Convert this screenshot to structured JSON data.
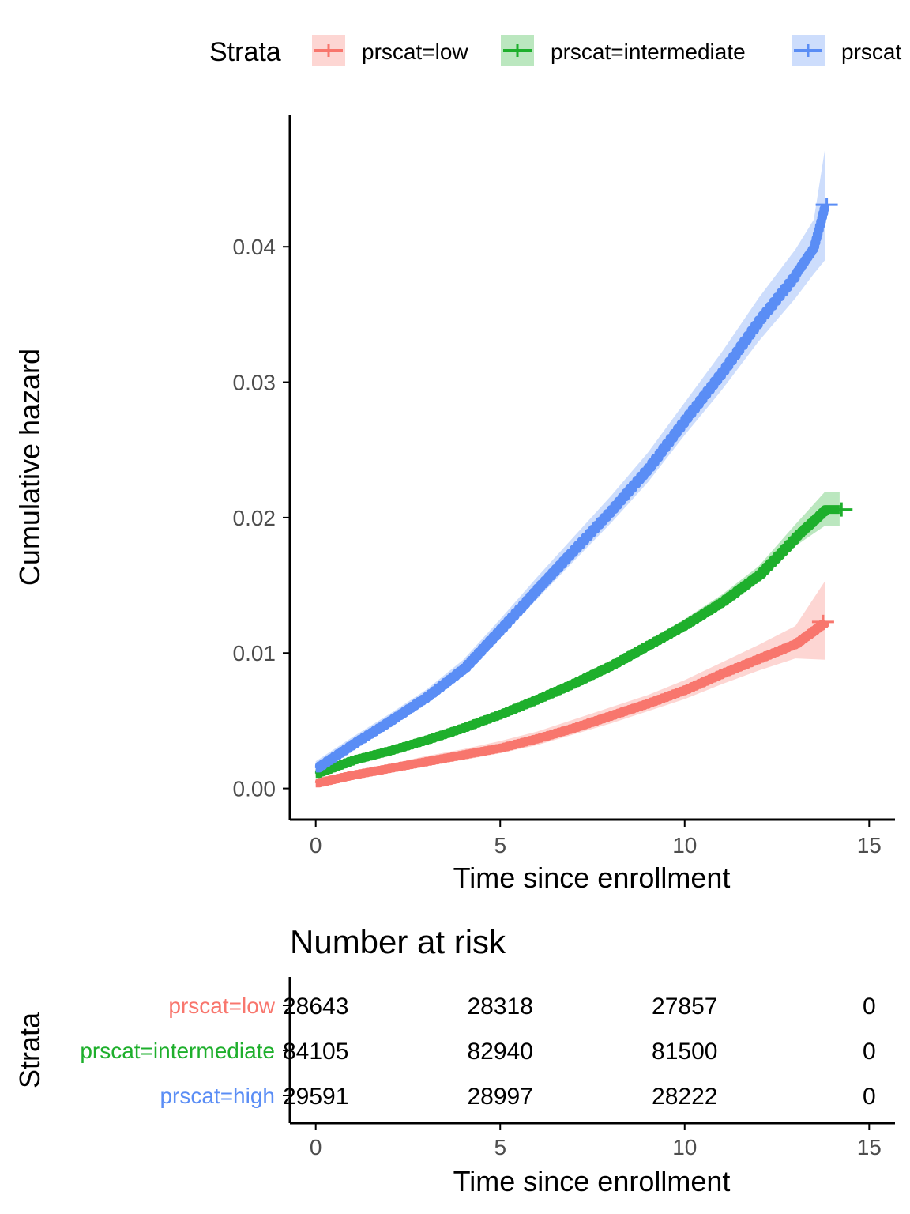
{
  "colors": {
    "low": "#F8766D",
    "intermediate": "#1EAF2C",
    "high": "#5A8DF5",
    "low_band": "#F8766D",
    "intermediate_band": "#1EAF2C",
    "high_band": "#5A8DF5",
    "axis": "#000000",
    "tick_label": "#4D4D4D"
  },
  "legend": {
    "title": "Strata",
    "entries": [
      {
        "label": "prscat=low",
        "color_key": "low"
      },
      {
        "label": "prscat=intermediate",
        "color_key": "intermediate"
      },
      {
        "label": "prscat",
        "color_key": "high"
      }
    ]
  },
  "risk_table": {
    "title": "Number at risk",
    "ylabel": "Strata",
    "xlabel": "Time since enrollment",
    "times": [
      0,
      5,
      10,
      15
    ],
    "time_tick_labels": [
      "0",
      "5",
      "10",
      "15"
    ],
    "rows": [
      {
        "label": "prscat=low",
        "color_key": "low",
        "values": [
          "28643",
          "28318",
          "27857",
          "0"
        ]
      },
      {
        "label": "prscat=intermediate",
        "color_key": "intermediate",
        "values": [
          "84105",
          "82940",
          "81500",
          "0"
        ]
      },
      {
        "label": "prscat=high",
        "color_key": "high",
        "values": [
          "29591",
          "28997",
          "28222",
          "0"
        ]
      }
    ]
  },
  "chart_data": {
    "type": "line",
    "title": "",
    "xlabel": "Time since enrollment",
    "ylabel": "Cumulative hazard",
    "xlim": [
      -0.7,
      15.7
    ],
    "ylim": [
      -0.0023,
      0.0497
    ],
    "x_ticks": [
      0,
      5,
      10,
      15
    ],
    "x_tick_labels": [
      "0",
      "5",
      "10",
      "15"
    ],
    "y_ticks": [
      0,
      0.01,
      0.02,
      0.03,
      0.04
    ],
    "y_tick_labels": [
      "0.00",
      "0.01",
      "0.02",
      "0.03",
      "0.04"
    ],
    "grid": false,
    "legend_position": "top",
    "series": [
      {
        "name": "prscat=low",
        "color_key": "low",
        "x": [
          0,
          1,
          2,
          3,
          4,
          5,
          6,
          7,
          8,
          9,
          10,
          11,
          12,
          13,
          13.8
        ],
        "y": [
          0.0004,
          0.001,
          0.0015,
          0.002,
          0.0025,
          0.003,
          0.0037,
          0.0045,
          0.0054,
          0.0063,
          0.0073,
          0.0085,
          0.0096,
          0.0107,
          0.0123
        ],
        "lower": [
          0.0002,
          0.0008,
          0.0012,
          0.0017,
          0.0021,
          0.0026,
          0.0032,
          0.004,
          0.0048,
          0.0057,
          0.0066,
          0.0077,
          0.0087,
          0.0096,
          0.0095
        ],
        "upper": [
          0.0007,
          0.0013,
          0.0018,
          0.0024,
          0.0029,
          0.0035,
          0.0042,
          0.0051,
          0.006,
          0.0069,
          0.008,
          0.0093,
          0.0106,
          0.012,
          0.0153
        ],
        "censor_x": [
          13.75
        ],
        "censor_y": [
          0.0123
        ]
      },
      {
        "name": "prscat=intermediate",
        "color_key": "intermediate",
        "x": [
          0,
          1,
          2,
          3,
          4,
          5,
          6,
          7,
          8,
          9,
          10,
          11,
          12,
          13,
          13.8,
          14.2
        ],
        "y": [
          0.0011,
          0.0021,
          0.0028,
          0.0036,
          0.0045,
          0.0055,
          0.0066,
          0.0078,
          0.0091,
          0.0106,
          0.0121,
          0.0138,
          0.0158,
          0.0186,
          0.0206,
          0.0206
        ],
        "lower": [
          0.0009,
          0.0019,
          0.0026,
          0.0034,
          0.0043,
          0.0053,
          0.0064,
          0.0076,
          0.0088,
          0.0103,
          0.0117,
          0.0134,
          0.0153,
          0.0179,
          0.0194,
          0.0194
        ],
        "upper": [
          0.0014,
          0.0024,
          0.0031,
          0.0039,
          0.0048,
          0.0058,
          0.0069,
          0.0081,
          0.0094,
          0.0109,
          0.0125,
          0.0143,
          0.0164,
          0.0195,
          0.0219,
          0.0219
        ],
        "censor_x": [
          14.25
        ],
        "censor_y": [
          0.0206
        ]
      },
      {
        "name": "prscat=high",
        "color_key": "high",
        "x": [
          0,
          1,
          2,
          3,
          4,
          5,
          6,
          7,
          8,
          9,
          10,
          11,
          12,
          13,
          13.5,
          13.8
        ],
        "y": [
          0.0015,
          0.0033,
          0.005,
          0.0068,
          0.0089,
          0.0118,
          0.0148,
          0.0177,
          0.0206,
          0.0237,
          0.0273,
          0.0308,
          0.0346,
          0.038,
          0.04,
          0.0431
        ],
        "lower": [
          0.001,
          0.0028,
          0.0045,
          0.0063,
          0.0083,
          0.0111,
          0.014,
          0.0168,
          0.0196,
          0.0226,
          0.0261,
          0.0294,
          0.033,
          0.0362,
          0.038,
          0.039
        ],
        "upper": [
          0.002,
          0.0038,
          0.0055,
          0.0073,
          0.0095,
          0.0125,
          0.0156,
          0.0186,
          0.0216,
          0.0248,
          0.0285,
          0.0322,
          0.0362,
          0.0398,
          0.042,
          0.0472
        ],
        "censor_x": [
          13.85
        ],
        "censor_y": [
          0.0431
        ]
      }
    ]
  }
}
